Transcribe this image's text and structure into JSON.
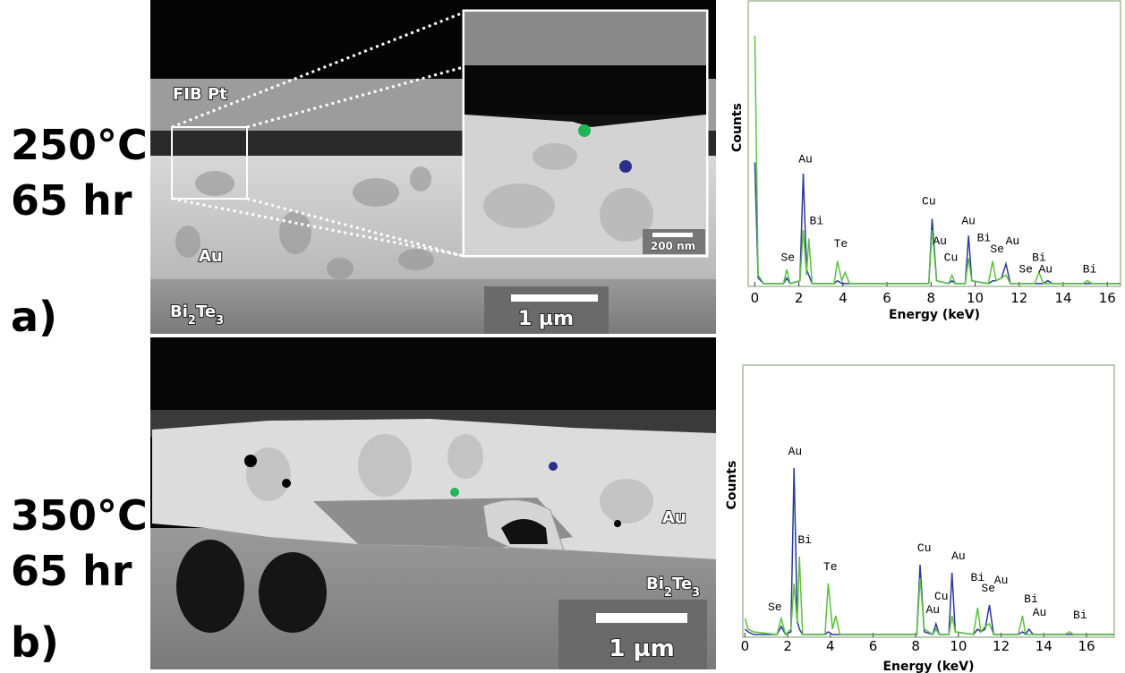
{
  "panels": [
    {
      "temperature": "250°C",
      "duration": "65 hr",
      "letter": "a)"
    },
    {
      "temperature": "350°C",
      "duration": "65 hr",
      "letter": "b)"
    }
  ],
  "micrographs": [
    {
      "labels": {
        "coating": "FIB Pt",
        "layer": "Au",
        "substrate": [
          "Bi",
          "2",
          "Te",
          "3"
        ]
      },
      "scale_bar": "1 µm",
      "inset_scale_bar": "200 nm"
    },
    {
      "labels": {
        "layer": "Au",
        "substrate": [
          "Bi",
          "2",
          "Te",
          "3"
        ]
      },
      "scale_bar": "1 µm"
    }
  ],
  "chart_data": [
    {
      "type": "line",
      "xlabel": "Energy (keV)",
      "ylabel": "Counts",
      "x": [
        0,
        0.15,
        0.4,
        1.3,
        1.45,
        1.6,
        2.05,
        2.2,
        2.35,
        2.45,
        2.6,
        3.6,
        3.75,
        3.95,
        4.1,
        4.3,
        7.9,
        8.05,
        8.25,
        8.8,
        8.95,
        9.1,
        9.55,
        9.7,
        9.85,
        10.6,
        10.8,
        10.95,
        11.2,
        11.4,
        11.6,
        12.7,
        12.9,
        13.1,
        13.3,
        13.5,
        14.9,
        15.1,
        15.3,
        16.6
      ],
      "series": [
        {
          "color": "#2b3a9a",
          "values": [
            44,
            3,
            1,
            1,
            3,
            1,
            2,
            40,
            6,
            4,
            1,
            1,
            2,
            1,
            1,
            1,
            1,
            24,
            2,
            1,
            2,
            1,
            1,
            18,
            2,
            1,
            2,
            2,
            3,
            8,
            1,
            1,
            1,
            1,
            2,
            1,
            1,
            1,
            1,
            1
          ]
        },
        {
          "color": "#5cc040",
          "values": [
            89,
            4,
            1,
            1,
            6,
            1,
            2,
            20,
            4,
            17,
            1,
            1,
            9,
            2,
            5,
            1,
            1,
            20,
            2,
            1,
            4,
            1,
            1,
            10,
            2,
            1,
            9,
            2,
            3,
            4,
            1,
            1,
            5,
            1,
            1,
            1,
            1,
            2,
            1,
            1
          ]
        }
      ],
      "xlim": [
        -0.3,
        16.6
      ],
      "xticks": [
        0,
        2,
        4,
        6,
        8,
        10,
        12,
        14,
        16
      ],
      "ylim": [
        0,
        100
      ],
      "annotations": [
        {
          "text": "Au",
          "x": 2.3,
          "y": 44
        },
        {
          "text": "Bi",
          "x": 2.8,
          "y": 22
        },
        {
          "text": "Se",
          "x": 1.5,
          "y": 9
        },
        {
          "text": "Te",
          "x": 3.9,
          "y": 14
        },
        {
          "text": "Cu",
          "x": 7.9,
          "y": 29
        },
        {
          "text": "Au",
          "x": 8.4,
          "y": 15
        },
        {
          "text": "Cu",
          "x": 8.9,
          "y": 9
        },
        {
          "text": "Au",
          "x": 9.7,
          "y": 22
        },
        {
          "text": "Bi",
          "x": 10.4,
          "y": 16
        },
        {
          "text": "Se",
          "x": 11.0,
          "y": 12
        },
        {
          "text": "Au",
          "x": 11.7,
          "y": 15
        },
        {
          "text": "Se",
          "x": 12.3,
          "y": 5
        },
        {
          "text": "Bi",
          "x": 12.9,
          "y": 9
        },
        {
          "text": "Au",
          "x": 13.2,
          "y": 5
        },
        {
          "text": "Bi",
          "x": 15.2,
          "y": 5
        }
      ]
    },
    {
      "type": "line",
      "xlabel": "Energy (keV)",
      "ylabel": "Counts",
      "x": [
        0,
        0.15,
        0.4,
        1.5,
        1.7,
        1.9,
        2.15,
        2.3,
        2.45,
        2.55,
        2.7,
        3.75,
        3.9,
        4.1,
        4.25,
        4.45,
        8.05,
        8.2,
        8.4,
        8.8,
        8.95,
        9.1,
        9.55,
        9.7,
        9.85,
        10.7,
        10.9,
        11.05,
        11.25,
        11.45,
        11.65,
        12.8,
        13.0,
        13.15,
        13.3,
        13.5,
        15.0,
        15.2,
        15.4,
        17.3
      ],
      "series": [
        {
          "color": "#2b3a9a",
          "values": [
            3,
            2,
            1,
            1,
            4,
            1,
            2,
            63,
            6,
            3,
            1,
            1,
            2,
            1,
            1,
            1,
            1,
            27,
            2,
            1,
            5,
            1,
            1,
            24,
            2,
            1,
            3,
            2,
            3,
            12,
            1,
            1,
            2,
            1,
            3,
            1,
            1,
            1,
            1,
            1
          ]
        },
        {
          "color": "#5cc040",
          "values": [
            7,
            3,
            2,
            1,
            7,
            1,
            3,
            20,
            5,
            30,
            1,
            1,
            20,
            3,
            8,
            1,
            1,
            22,
            3,
            1,
            3,
            1,
            1,
            8,
            2,
            1,
            11,
            2,
            4,
            5,
            1,
            1,
            8,
            1,
            1,
            1,
            1,
            2,
            1,
            1
          ]
        }
      ],
      "xlim": [
        -0.1,
        17.3
      ],
      "xticks": [
        0,
        2,
        4,
        6,
        8,
        10,
        12,
        14,
        16
      ],
      "ylim": [
        0,
        100
      ],
      "annotations": [
        {
          "text": "Au",
          "x": 2.35,
          "y": 68
        },
        {
          "text": "Bi",
          "x": 2.8,
          "y": 35
        },
        {
          "text": "Se",
          "x": 1.4,
          "y": 10
        },
        {
          "text": "Te",
          "x": 4.0,
          "y": 25
        },
        {
          "text": "Cu",
          "x": 8.4,
          "y": 32
        },
        {
          "text": "Au",
          "x": 8.8,
          "y": 9
        },
        {
          "text": "Cu",
          "x": 9.2,
          "y": 14
        },
        {
          "text": "Au",
          "x": 10.0,
          "y": 29
        },
        {
          "text": "Bi",
          "x": 10.9,
          "y": 21
        },
        {
          "text": "Au",
          "x": 12.0,
          "y": 20
        },
        {
          "text": "Se",
          "x": 11.4,
          "y": 17
        },
        {
          "text": "Bi",
          "x": 13.4,
          "y": 13
        },
        {
          "text": "Au",
          "x": 13.8,
          "y": 8
        },
        {
          "text": "Bi",
          "x": 15.7,
          "y": 7
        }
      ]
    }
  ]
}
